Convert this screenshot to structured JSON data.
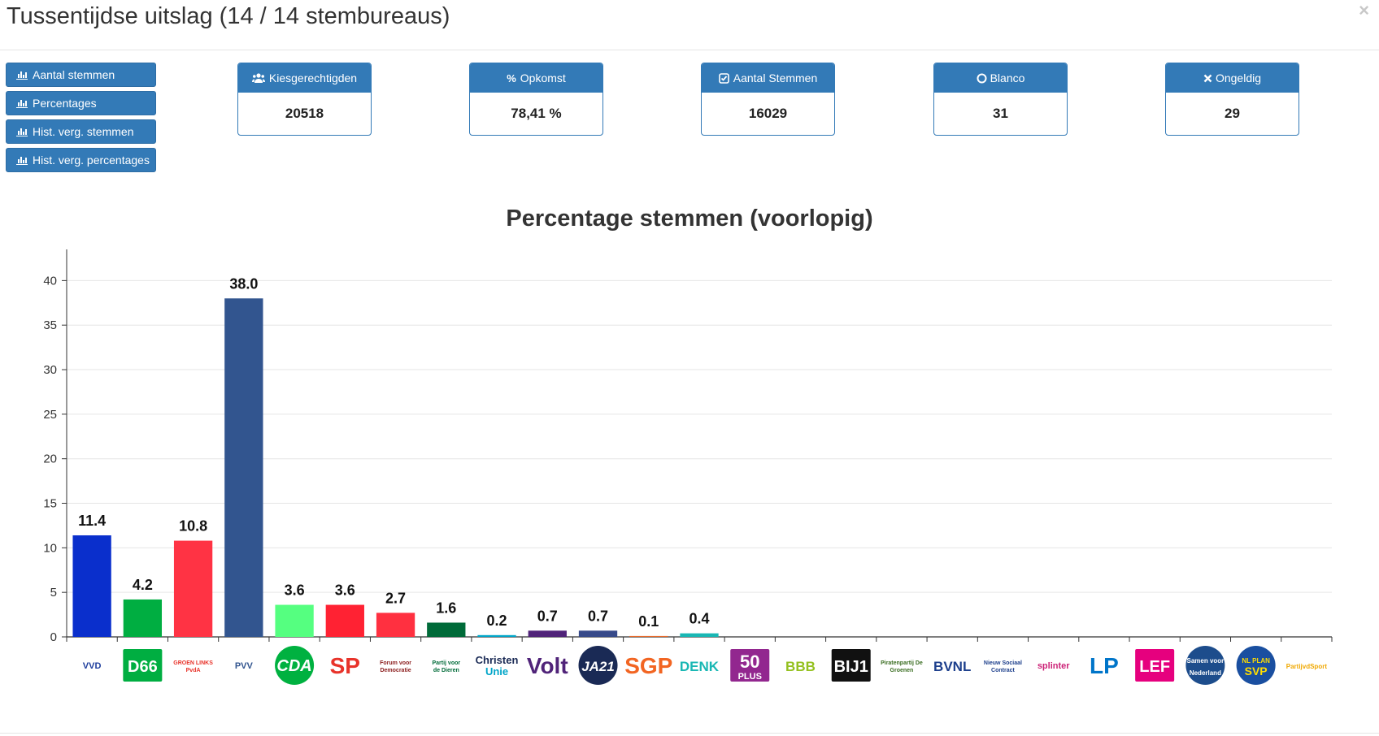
{
  "window": {
    "title": "Tussentijdse uitslag (14 / 14 stembureaus)",
    "close_label": "×"
  },
  "side_buttons": [
    {
      "label": "Aantal stemmen",
      "icon": "bar-chart-icon"
    },
    {
      "label": "Percentages",
      "icon": "bar-chart-icon"
    },
    {
      "label": "Hist. verg. stemmen",
      "icon": "bar-chart-icon"
    },
    {
      "label": "Hist. verg. percentages",
      "icon": "bar-chart-icon"
    }
  ],
  "stats": [
    {
      "label": "Kiesgerechtigden",
      "value": "20518",
      "icon": "users-icon"
    },
    {
      "label": "Opkomst",
      "value": "78,41 %",
      "icon": "percent-icon"
    },
    {
      "label": "Aantal Stemmen",
      "value": "16029",
      "icon": "check-square-icon"
    },
    {
      "label": "Blanco",
      "value": "31",
      "icon": "circle-icon"
    },
    {
      "label": "Ongeldig",
      "value": "29",
      "icon": "x-icon"
    }
  ],
  "colors": {
    "primary": "#337ab7",
    "primary_border": "#2e6da4"
  },
  "chart_data": {
    "type": "bar",
    "title": "Percentage stemmen (voorlopig)",
    "xlabel": "",
    "ylabel": "",
    "ylim": [
      0,
      43.5
    ],
    "yticks": [
      0,
      5,
      10,
      15,
      20,
      25,
      30,
      35,
      40
    ],
    "grid": true,
    "categories": [
      "VVD",
      "D66",
      "GroenLinks-PvdA",
      "PVV",
      "CDA",
      "SP",
      "Forum voor Democratie",
      "Partij voor de Dieren",
      "ChristenUnie",
      "Volt",
      "JA21",
      "SGP",
      "DENK",
      "50PLUS",
      "BBB",
      "BIJ1",
      "Piratenpartij De Groenen",
      "BVNL",
      "Nieuw Sociaal Contract",
      "Splinter",
      "LP",
      "LEF",
      "Samen voor Nederland",
      "NL Plan SVP",
      "PartijvdSport"
    ],
    "values": [
      11.4,
      4.2,
      10.8,
      38.0,
      3.6,
      3.6,
      2.7,
      1.6,
      0.2,
      0.7,
      0.7,
      0.1,
      0.4,
      0.0,
      0.0,
      0.0,
      0.0,
      0.0,
      0.0,
      0.0,
      0.0,
      0.0,
      0.0,
      0.0,
      0.0
    ],
    "data_labels": [
      "11.4",
      "4.2",
      "10.8",
      "38.0",
      "3.6",
      "3.6",
      "2.7",
      "1.6",
      "0.2",
      "0.7",
      "0.7",
      "0.1",
      "0.4",
      "",
      "",
      "",
      "",
      "",
      "",
      "",
      "",
      "",
      "",
      "",
      ""
    ],
    "bar_colors": [
      "#0a2fcc",
      "#00ae41",
      "#ff3344",
      "#32558f",
      "#55ff80",
      "#ff2233",
      "#ff3040",
      "#006b39",
      "#00a5c8",
      "#502379",
      "#374a8a",
      "#e86b2c",
      "#19b7b4",
      "#92278f",
      "#94c11f",
      "#ff1a7f",
      "#222222",
      "#1d3f8c",
      "#f0c800",
      "#cc2277",
      "#0075c9",
      "#e6007e",
      "#1d4d8c",
      "#1d4d8c",
      "#ffb400"
    ],
    "logos": [
      {
        "text": "VVD",
        "color": "#1c3c9c",
        "style": "tiny"
      },
      {
        "text": "D66",
        "color": "#ffffff",
        "bg": "#00ae41",
        "style": "box"
      },
      {
        "text": "GROEN LINKS PvdA",
        "color": "#e8332a",
        "style": "tiny"
      },
      {
        "text": "PVV",
        "color": "#32558f",
        "style": "tiny"
      },
      {
        "text": "CDA",
        "color": "#ffffff",
        "bg": "#00b140",
        "style": "circle"
      },
      {
        "text": "SP",
        "color": "#e8332a",
        "style": "big"
      },
      {
        "text": "Forum voor Democratie",
        "color": "#8b1b1b",
        "style": "tiny"
      },
      {
        "text": "Partij voor de Dieren",
        "color": "#006b39",
        "style": "tiny"
      },
      {
        "text": "Christen Unie",
        "color": "#00a5c8",
        "style": "two"
      },
      {
        "text": "Volt",
        "color": "#502379",
        "style": "big"
      },
      {
        "text": "JA21",
        "color": "#ffffff",
        "bg": "#1a2a55",
        "style": "circle"
      },
      {
        "text": "SGP",
        "color": "#f26522",
        "style": "big"
      },
      {
        "text": "DENK",
        "color": "#19b7b4",
        "style": "mid"
      },
      {
        "text": "50 PLUS",
        "color": "#ffffff",
        "bg": "#92278f",
        "style": "box"
      },
      {
        "text": "BBB",
        "color": "#94c11f",
        "style": "mid"
      },
      {
        "text": "BIJ1",
        "color": "#ffffff",
        "bg": "#111111",
        "style": "box"
      },
      {
        "text": "Piratenpartij De Groenen",
        "color": "#3b6e22",
        "style": "tiny"
      },
      {
        "text": "BVNL",
        "color": "#1d3f8c",
        "style": "mid"
      },
      {
        "text": "Nieuw Sociaal Contract",
        "color": "#1d3f8c",
        "style": "tiny"
      },
      {
        "text": "splinter",
        "color": "#cc2277",
        "style": "tiny"
      },
      {
        "text": "LP",
        "color": "#0075c9",
        "style": "big"
      },
      {
        "text": "LEF",
        "color": "#ffffff",
        "bg": "#e6007e",
        "style": "box"
      },
      {
        "text": "Samen voor Nederland",
        "color": "#ffffff",
        "bg": "#1d4d8c",
        "style": "circle"
      },
      {
        "text": "NL PLAN SVP",
        "color": "#ffdd00",
        "bg": "#1a4fa0",
        "style": "circle"
      },
      {
        "text": "PartijvdSport",
        "color": "#f0a800",
        "style": "tiny"
      }
    ]
  }
}
